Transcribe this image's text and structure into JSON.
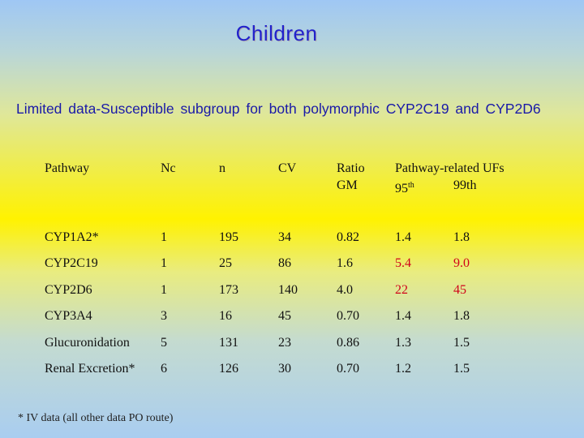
{
  "title": "Children",
  "subtitle": "Limited data-Susceptible subgroup for both polymorphic CYP2C19 and CYP2D6",
  "table": {
    "headers": {
      "pathway": "Pathway",
      "nc": "Nc",
      "n": "n",
      "cv": "CV",
      "ratio_line1": "Ratio",
      "ratio_line2": "GM",
      "ufs_title": "Pathway-related UFs",
      "p95_num": "95",
      "p95_suffix": "th",
      "p99": "99th"
    },
    "rows": [
      {
        "pathway": "CYP1A2*",
        "nc": "1",
        "n": "195",
        "cv": "34",
        "ratio": "0.82",
        "uf95": "1.4",
        "uf99": "1.8"
      },
      {
        "pathway": "CYP2C19",
        "nc": "1",
        "n": "25",
        "cv": "86",
        "ratio": "1.6",
        "uf95": "5.4",
        "uf99": "9.0"
      },
      {
        "pathway": "CYP2D6",
        "nc": "1",
        "n": "173",
        "cv": "140",
        "ratio": "4.0",
        "uf95": "22",
        "uf99": "45"
      },
      {
        "pathway": "CYP3A4",
        "nc": "3",
        "n": "16",
        "cv": "45",
        "ratio": "0.70",
        "uf95": "1.4",
        "uf99": "1.8"
      },
      {
        "pathway": "Glucuronidation",
        "nc": "5",
        "n": "131",
        "cv": "23",
        "ratio": "0.86",
        "uf95": "1.3",
        "uf99": "1.5"
      },
      {
        "pathway": "Renal Excretion*",
        "nc": "6",
        "n": "126",
        "cv": "30",
        "ratio": "0.70",
        "uf95": "1.2",
        "uf99": "1.5"
      }
    ],
    "highlight_color": "#d0021b"
  },
  "footnote": "* IV data (all other data PO route)"
}
